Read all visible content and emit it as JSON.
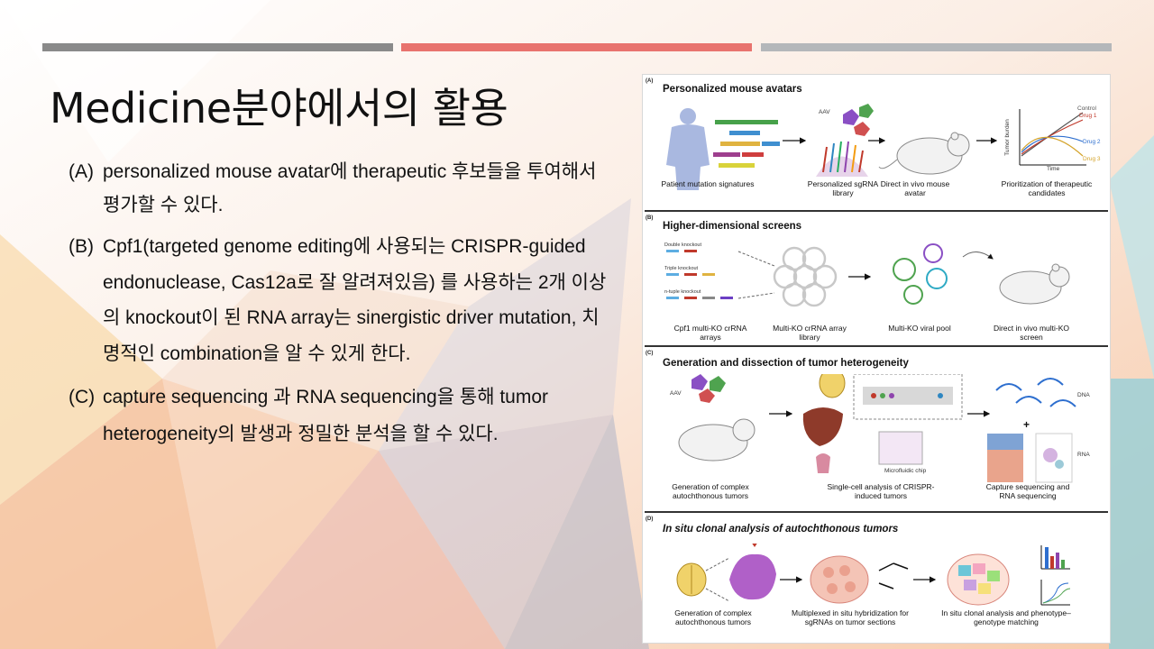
{
  "slide": {
    "title": "Medicine분야에서의 활용",
    "bullets": [
      {
        "label": "(A)",
        "text": "personalized mouse avatar에 therapeutic 후보들을 투여해서 평가할 수 있다."
      },
      {
        "label": "(B)",
        "text": " Cpf1(targeted genome editing에 사용되는 CRISPR-guided endonuclease, Cas12a로 잘 알려져있음) 를 사용하는  2개 이상의 knockout이 된 RNA array는 sinergistic driver mutation, 치명적인 combination을 알 수 있게 한다."
      },
      {
        "label": "(C)",
        "text": " capture sequencing 과 RNA sequencing을 통해 tumor heterogeneity의 발생과 정밀한 분석을 할 수 있다."
      }
    ],
    "colors": {
      "bar_left": "#8a8a8a",
      "bar_mid": "#e8736e",
      "bar_right": "#b4b7ba"
    }
  },
  "figure": {
    "A": {
      "label": "(A)",
      "title": "Personalized mouse avatars",
      "aav": "AAV",
      "captions": [
        "Patient mutation signatures",
        "Personalized sgRNA library",
        "Direct in vivo mouse avatar",
        "Prioritization of therapeutic candidates"
      ],
      "chart_legend": [
        "Control",
        "Drug 1",
        "Drug 2",
        "Drug 3"
      ],
      "chart_ylabel": "Tumor burden",
      "chart_xlabel": "Time"
    },
    "B": {
      "label": "(B)",
      "title": "Higher-dimensional screens",
      "ko_labels": [
        "Double knockout",
        "Triple knockout",
        "n-tuple knockout"
      ],
      "captions": [
        "Cpf1 multi-KO crRNA arrays",
        "Multi-KO crRNA array library",
        "Multi-KO viral pool",
        "Direct in vivo multi-KO screen"
      ]
    },
    "C": {
      "label": "(C)",
      "title": "Generation and dissection of tumor heterogeneity",
      "aav": "AAV",
      "chip": "Microfluidic chip",
      "dna": "DNA",
      "rna": "RNA",
      "captions": [
        "Generation of complex autochthonous tumors",
        "Single-cell analysis of CRISPR-induced tumors",
        "Capture sequencing and RNA sequencing"
      ]
    },
    "D": {
      "label": "(D)",
      "title": "In situ clonal analysis of autochthonous tumors",
      "captions": [
        "Generation of complex autochthonous tumors",
        "Multiplexed in situ hybridization for sgRNAs on tumor sections",
        "In situ clonal analysis and phenotype–genotype matching"
      ]
    }
  }
}
